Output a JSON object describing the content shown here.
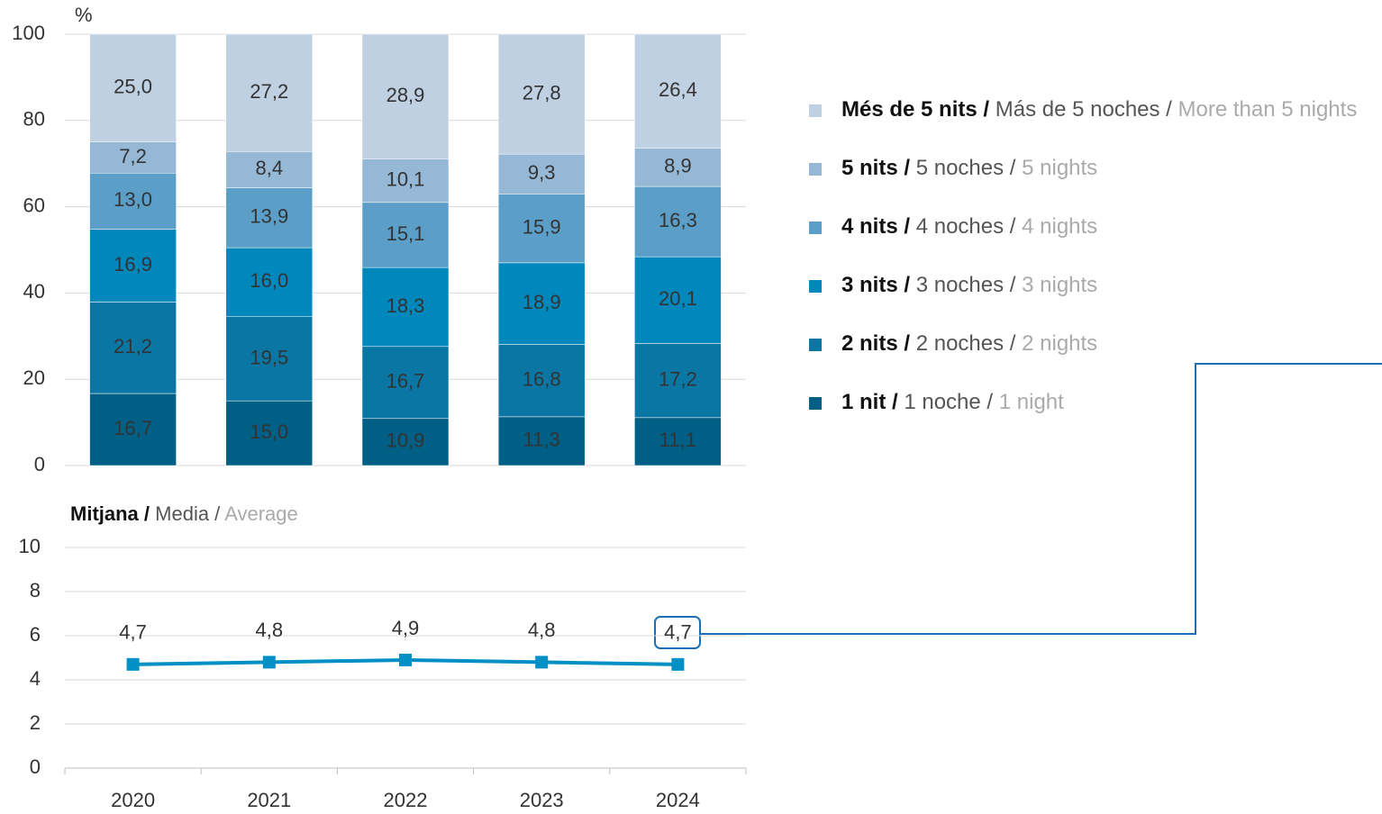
{
  "chart_data": [
    {
      "type": "stacked_bar",
      "y_label": "%",
      "ylim": [
        0,
        100
      ],
      "yticks": [
        0,
        20,
        40,
        60,
        80,
        100
      ],
      "grid": true,
      "legend": "right",
      "series": [
        {
          "name": [
            "1 nit /",
            "1 noche /",
            "1 night"
          ],
          "color": "#005f84",
          "values": [
            16.7,
            15.0,
            10.9,
            11.3,
            11.1
          ],
          "value_labels": [
            "16,7",
            "15,0",
            "10,9",
            "11,3",
            "11,1"
          ]
        },
        {
          "name": [
            "2 nits /",
            "2 noches /",
            "2 nights"
          ],
          "color": "#0a76a3",
          "values": [
            21.2,
            19.5,
            16.7,
            16.8,
            17.2
          ],
          "value_labels": [
            "21,2",
            "19,5",
            "16,7",
            "16,8",
            "17,2"
          ]
        },
        {
          "name": [
            "3 nits /",
            "3 noches /",
            "3 nights"
          ],
          "color": "#0087bb",
          "values": [
            16.9,
            16.0,
            18.3,
            18.9,
            20.1
          ],
          "value_labels": [
            "16,9",
            "16,0",
            "18,3",
            "18,9",
            "20,1"
          ]
        },
        {
          "name": [
            "4 nits /",
            "4 noches /",
            "4 nights"
          ],
          "color": "#5b9fc8",
          "values": [
            13.0,
            13.9,
            15.1,
            15.9,
            16.3
          ],
          "value_labels": [
            "13,0",
            "13,9",
            "15,1",
            "15,9",
            "16,3"
          ]
        },
        {
          "name": [
            "5 nits /",
            "5 noches /",
            "5 nights"
          ],
          "color": "#95b8d6",
          "values": [
            7.2,
            8.4,
            10.1,
            9.3,
            8.9
          ],
          "value_labels": [
            "7,2",
            "8,4",
            "10,1",
            "9,3",
            "8,9"
          ]
        },
        {
          "name": [
            "Més de 5 nits /",
            "Más de 5 noches /",
            "More than 5 nights"
          ],
          "color": "#bfd0e2",
          "values": [
            25.0,
            27.2,
            28.9,
            27.8,
            26.4
          ],
          "value_labels": [
            "25,0",
            "27,2",
            "28,9",
            "27,8",
            "26,4"
          ]
        }
      ]
    },
    {
      "type": "line",
      "title": [
        "Mitjana /",
        "Media /",
        "Average"
      ],
      "categories": [
        "2020",
        "2021",
        "2022",
        "2023",
        "2024"
      ],
      "ylim": [
        0,
        10
      ],
      "yticks": [
        0,
        2,
        4,
        6,
        8,
        10
      ],
      "grid": true,
      "series": [
        {
          "color": "#0090c5",
          "values": [
            4.7,
            4.8,
            4.9,
            4.8,
            4.7
          ],
          "value_labels": [
            "4,7",
            "4,8",
            "4,9",
            "4,8",
            "4,7"
          ]
        }
      ]
    }
  ]
}
